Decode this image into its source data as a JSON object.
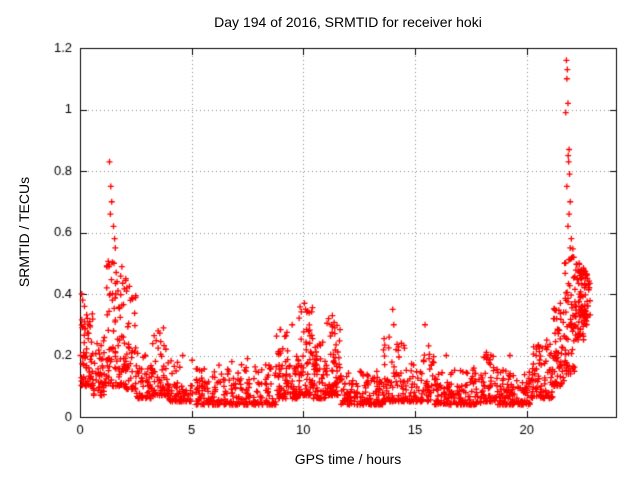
{
  "chart_data": {
    "type": "scatter",
    "title": "Day 194 of 2016, SRMTID for receiver hoki",
    "xlabel": "GPS time / hours",
    "ylabel": "SRMTID / TECUs",
    "xlim": [
      0,
      24
    ],
    "ylim": [
      0,
      1.2
    ],
    "xticks": {
      "values": [
        0,
        5,
        10,
        15,
        20
      ],
      "labels": [
        "0",
        "5",
        "10",
        "15",
        "20"
      ]
    },
    "yticks": {
      "values": [
        0,
        0.2,
        0.4,
        0.6,
        0.8,
        1,
        1.2
      ],
      "labels": [
        "0",
        "0.2",
        "0.4",
        "0.6",
        "0.8",
        "1",
        "1.2"
      ]
    },
    "grid": true,
    "grid_color": "#909090",
    "axes_color": "#000000",
    "marker": {
      "shape": "plus",
      "color": "#ff0000",
      "size": 6
    },
    "series_name": "SRMTID",
    "seed": 194,
    "segments": [
      [
        0.0,
        0.6,
        70,
        0.1,
        0.34,
        2.0
      ],
      [
        0.6,
        1.15,
        45,
        0.07,
        0.26,
        2.0
      ],
      [
        1.15,
        1.95,
        80,
        0.1,
        0.52,
        2.2
      ],
      [
        1.95,
        2.5,
        55,
        0.09,
        0.45,
        2.4
      ],
      [
        2.5,
        3.25,
        60,
        0.06,
        0.22,
        2.0
      ],
      [
        3.25,
        3.95,
        55,
        0.07,
        0.3,
        2.2
      ],
      [
        3.95,
        5.2,
        70,
        0.05,
        0.19,
        2.2
      ],
      [
        5.2,
        8.8,
        240,
        0.04,
        0.17,
        2.4
      ],
      [
        8.8,
        9.75,
        85,
        0.06,
        0.3,
        2.2
      ],
      [
        9.75,
        10.45,
        75,
        0.07,
        0.36,
        2.0
      ],
      [
        10.45,
        11.05,
        60,
        0.06,
        0.26,
        2.0
      ],
      [
        11.05,
        11.65,
        65,
        0.07,
        0.34,
        2.0
      ],
      [
        11.65,
        13.55,
        140,
        0.04,
        0.15,
        2.2
      ],
      [
        13.55,
        14.55,
        75,
        0.05,
        0.28,
        2.4
      ],
      [
        14.55,
        15.35,
        50,
        0.05,
        0.18,
        2.2
      ],
      [
        15.35,
        15.85,
        35,
        0.05,
        0.24,
        2.2
      ],
      [
        15.85,
        17.95,
        140,
        0.04,
        0.16,
        2.2
      ],
      [
        17.95,
        18.6,
        55,
        0.05,
        0.21,
        2.2
      ],
      [
        18.6,
        20.2,
        120,
        0.04,
        0.16,
        2.2
      ],
      [
        20.2,
        21.2,
        85,
        0.06,
        0.24,
        1.8
      ],
      [
        21.2,
        21.7,
        60,
        0.1,
        0.38,
        1.8
      ],
      [
        21.7,
        22.15,
        55,
        0.14,
        0.55,
        1.6
      ],
      [
        22.15,
        22.55,
        70,
        0.25,
        0.5,
        1.2
      ],
      [
        22.55,
        22.85,
        40,
        0.3,
        0.48,
        1.2
      ]
    ],
    "outliers": [
      [
        0.08,
        0.4
      ],
      [
        0.12,
        0.38
      ],
      [
        0.2,
        0.36
      ],
      [
        1.32,
        0.83
      ],
      [
        1.38,
        0.75
      ],
      [
        1.42,
        0.7
      ],
      [
        1.36,
        0.66
      ],
      [
        1.5,
        0.62
      ],
      [
        1.55,
        0.58
      ],
      [
        1.58,
        0.55
      ],
      [
        1.52,
        0.5
      ],
      [
        1.62,
        0.47
      ],
      [
        1.66,
        0.44
      ],
      [
        1.7,
        0.41
      ],
      [
        1.45,
        0.38
      ],
      [
        2.05,
        0.45
      ],
      [
        2.1,
        0.42
      ],
      [
        3.5,
        0.28
      ],
      [
        4.6,
        0.2
      ],
      [
        6.8,
        0.18
      ],
      [
        7.5,
        0.19
      ],
      [
        9.5,
        0.3
      ],
      [
        10.05,
        0.37
      ],
      [
        10.1,
        0.35
      ],
      [
        11.25,
        0.3
      ],
      [
        11.3,
        0.33
      ],
      [
        14.0,
        0.35
      ],
      [
        14.05,
        0.3
      ],
      [
        15.45,
        0.3
      ],
      [
        16.4,
        0.2
      ],
      [
        18.2,
        0.21
      ],
      [
        19.25,
        0.2
      ],
      [
        20.9,
        0.25
      ],
      [
        21.78,
        1.16
      ],
      [
        21.82,
        1.13
      ],
      [
        21.8,
        1.1
      ],
      [
        21.85,
        1.02
      ],
      [
        21.75,
        0.99
      ],
      [
        21.9,
        0.87
      ],
      [
        21.86,
        0.85
      ],
      [
        21.88,
        0.83
      ],
      [
        21.92,
        0.79
      ],
      [
        21.8,
        0.75
      ],
      [
        21.95,
        0.7
      ],
      [
        21.9,
        0.66
      ],
      [
        21.85,
        0.62
      ],
      [
        22.0,
        0.58
      ],
      [
        21.95,
        0.55
      ],
      [
        22.05,
        0.52
      ],
      [
        21.7,
        0.5
      ]
    ]
  }
}
